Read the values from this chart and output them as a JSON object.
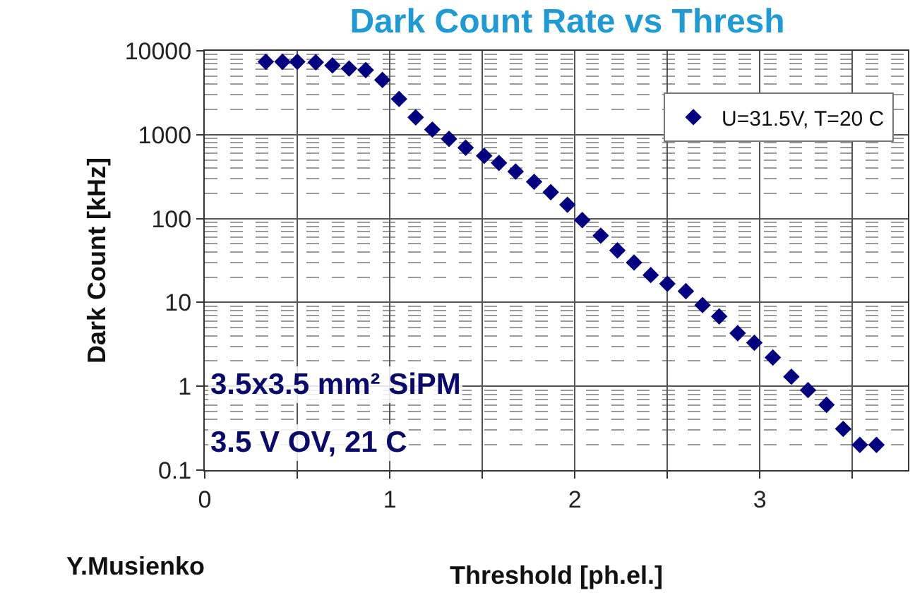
{
  "chart_data": {
    "type": "scatter",
    "title": "Dark Count Rate vs Thresh",
    "xlabel": "Threshold [ph.el.]",
    "ylabel": "Dark Count [kHz]",
    "x": [
      0.33,
      0.42,
      0.5,
      0.6,
      0.69,
      0.78,
      0.87,
      0.96,
      1.05,
      1.14,
      1.23,
      1.32,
      1.41,
      1.51,
      1.59,
      1.68,
      1.78,
      1.87,
      1.96,
      2.04,
      2.14,
      2.23,
      2.32,
      2.41,
      2.5,
      2.6,
      2.69,
      2.78,
      2.88,
      2.97,
      3.07,
      3.17,
      3.26,
      3.36,
      3.45,
      3.54,
      3.63
    ],
    "series": [
      {
        "name": "U=31.5V, T=20 C",
        "color": "#000080",
        "values": [
          7400,
          7400,
          7400,
          7300,
          6700,
          6150,
          5900,
          4500,
          2670,
          1610,
          1150,
          890,
          700,
          560,
          460,
          364,
          274,
          206,
          146,
          96,
          62.5,
          41.7,
          29.9,
          21.2,
          16.7,
          13.6,
          9.3,
          6.8,
          4.3,
          3.3,
          2.2,
          1.3,
          0.9,
          0.6,
          0.31,
          0.2,
          0.2
        ]
      }
    ],
    "log": "y",
    "xlim": [
      0,
      3.8
    ],
    "ylim": [
      0.1,
      10000
    ],
    "xticks": [
      0,
      {
        "value": 0.5,
        "label": null
      },
      1,
      {
        "value": 1.5,
        "label": null
      },
      2,
      {
        "value": 2.5,
        "label": null
      },
      3,
      {
        "value": 3.5,
        "label": null
      }
    ],
    "yticks": [
      0.1,
      1,
      10,
      100,
      1000,
      10000
    ],
    "grid": true,
    "legend": "top right",
    "marker": "diamond",
    "annotations": [
      "3.5x3.5 mm² SiPM",
      "3.5 V OV, 21 C",
      "Y.Musienko"
    ]
  }
}
